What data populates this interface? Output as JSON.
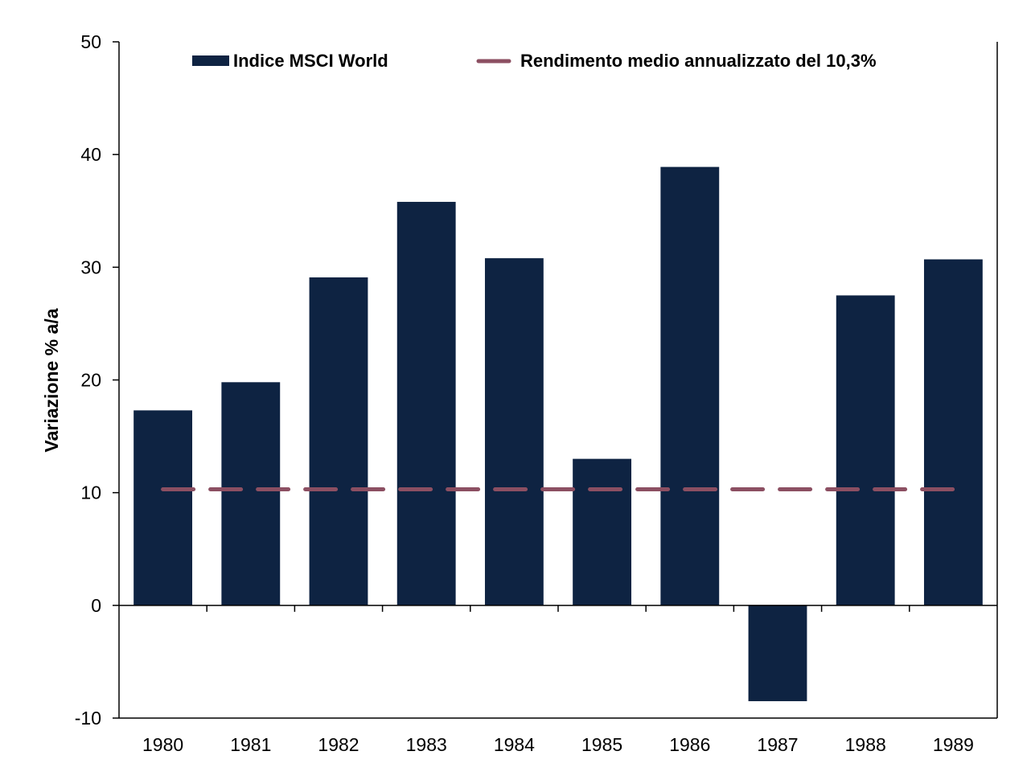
{
  "chart_data": {
    "type": "bar",
    "title": "",
    "xlabel": "",
    "ylabel": "Variazione % a/a",
    "ylim": [
      -10,
      50
    ],
    "yticks": [
      -10,
      0,
      10,
      20,
      30,
      40,
      50
    ],
    "grid": false,
    "legend_position": "top",
    "categories": [
      "1980",
      "1981",
      "1982",
      "1983",
      "1984",
      "1985",
      "1986",
      "1987",
      "1988",
      "1989"
    ],
    "series": [
      {
        "name": "Indice MSCI World",
        "kind": "bar",
        "color": "#0e2342",
        "values": [
          17.3,
          19.8,
          29.1,
          35.8,
          30.8,
          13.0,
          38.9,
          -8.5,
          27.5,
          30.7
        ]
      },
      {
        "name": "Rendimento medio annualizzato del 10,3%",
        "kind": "line",
        "style": "dashed",
        "color": "#8c4f62",
        "value": 10.3
      }
    ]
  }
}
